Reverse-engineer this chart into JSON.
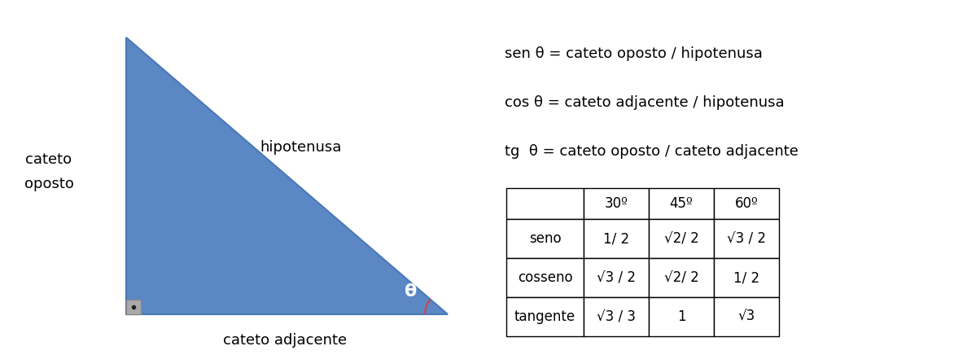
{
  "triangle_color": "#5b87c5",
  "triangle_edge_color": "#4a78b8",
  "right_angle_box_color": "#888888",
  "right_angle_box_fill": "#aaaaaa",
  "angle_arc_color": "#cc4444",
  "label_cateto_oposto": [
    "cateto",
    "oposto"
  ],
  "label_hipotenusa": "hipotenusa",
  "label_cateto_adjacente": "cateto adjacente",
  "label_theta": "θ",
  "formula1": "sen θ = cateto oposto / hipotenusa",
  "formula2": "cos θ = cateto adjacente / hipotenusa",
  "formula3": "tg  θ = cateto oposto / cateto adjacente",
  "table_col_headers": [
    "30º",
    "45º",
    "60º"
  ],
  "table_row_headers": [
    "seno",
    "cosseno",
    "tangente"
  ],
  "table_data": [
    [
      "1/ 2",
      "√2/ 2",
      "√3 / 2"
    ],
    [
      "√3 / 2",
      "√2/ 2",
      "1/ 2"
    ],
    [
      "√3 / 3",
      "1",
      "√3"
    ]
  ],
  "font_size_labels": 13,
  "font_size_formulas": 13,
  "font_size_table": 12,
  "bg_color": "#ffffff",
  "text_color": "#000000"
}
